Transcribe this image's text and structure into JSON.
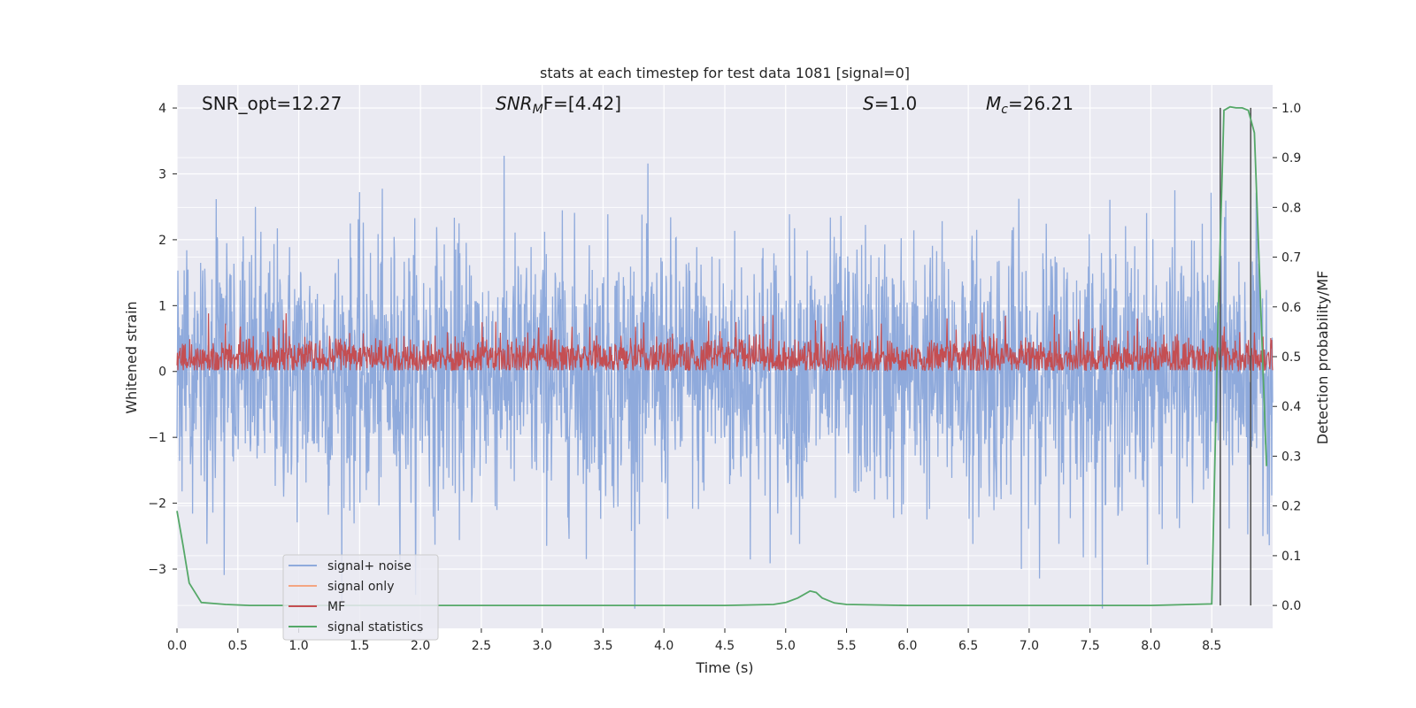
{
  "chart_data": {
    "type": "line",
    "title": "stats at each timestep for test data 1081 [signal=0]",
    "xlabel": "Time (s)",
    "ylabel_left": "Whitened strain",
    "ylabel_right": "Detection probability/MF",
    "xlim": [
      0.0,
      9.0
    ],
    "ylim_left": [
      -3.9,
      4.35
    ],
    "ylim_right": [
      -0.046,
      1.046
    ],
    "xticks": [
      "0.0",
      "0.5",
      "1.0",
      "1.5",
      "2.0",
      "2.5",
      "3.0",
      "3.5",
      "4.0",
      "4.5",
      "5.0",
      "5.5",
      "6.0",
      "6.5",
      "7.0",
      "7.5",
      "8.0",
      "8.5"
    ],
    "yticks_left": [
      "4",
      "3",
      "2",
      "1",
      "0",
      "−1",
      "−2",
      "−3"
    ],
    "yticks_right": [
      "1.0",
      "0.9",
      "0.8",
      "0.7",
      "0.6",
      "0.5",
      "0.4",
      "0.3",
      "0.2",
      "0.1",
      "0.0"
    ],
    "grid": true,
    "legend_position": "lower-left",
    "annotations": {
      "snr_opt": "SNR_opt=12.27",
      "snr_mf_main": "SNR",
      "snr_mf_sub": "M",
      "snr_mf_rest": "F=[4.42]",
      "s_main": "S",
      "s_rest": "=1.0",
      "mc_main": "M",
      "mc_sub": "c",
      "mc_rest": "=26.21"
    },
    "series": [
      {
        "name": "signal+ noise",
        "color": "#8faadc",
        "axis": "left",
        "description_values": "whitened noise, roughly Gaussian, range about -3.6 to 4.0",
        "envelope": {
          "min": -3.6,
          "max": 4.0,
          "sigma": 1.0
        }
      },
      {
        "name": "signal only",
        "color": "#f4a582",
        "axis": "left",
        "values_flat": 0.0
      },
      {
        "name": "MF",
        "color": "#c44e52",
        "axis": "left",
        "baseline": 0.2,
        "envelope": {
          "min": 0.02,
          "max": 1.0
        }
      },
      {
        "name": "signal statistics",
        "color": "#55a868",
        "axis": "right",
        "x": [
          0.0,
          0.05,
          0.1,
          0.2,
          0.4,
          0.6,
          1.0,
          2.0,
          3.0,
          4.0,
          4.5,
          4.9,
          5.0,
          5.1,
          5.2,
          5.25,
          5.3,
          5.4,
          5.5,
          6.0,
          7.0,
          8.0,
          8.5,
          8.55,
          8.6,
          8.65,
          8.7,
          8.75,
          8.8,
          8.85,
          8.95
        ],
        "y": [
          0.19,
          0.12,
          0.045,
          0.006,
          0.002,
          0.0,
          0.0,
          0.0,
          0.0,
          0.0,
          0.0,
          0.002,
          0.006,
          0.015,
          0.029,
          0.026,
          0.015,
          0.005,
          0.002,
          0.0,
          0.0,
          0.0,
          0.003,
          0.56,
          0.995,
          1.002,
          1.0,
          1.0,
          0.995,
          0.95,
          0.28
        ]
      }
    ],
    "vertical_lines": [
      8.57,
      8.82
    ]
  }
}
